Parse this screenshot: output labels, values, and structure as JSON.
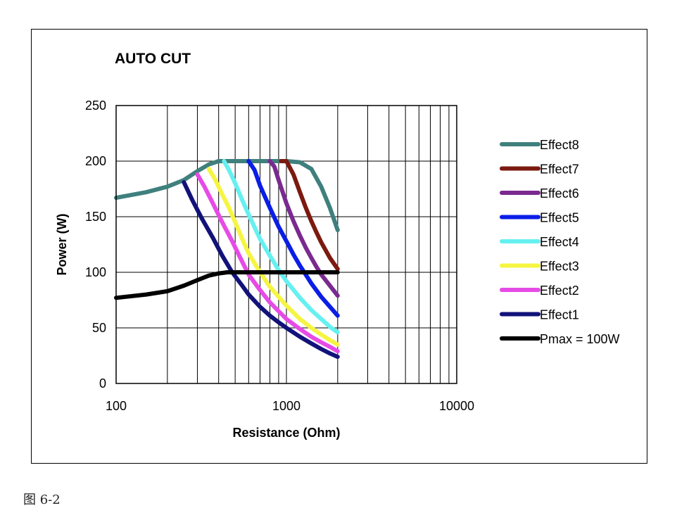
{
  "caption": "图 6-2",
  "chart_data": {
    "type": "line",
    "title": "AUTO CUT",
    "xlabel": "Resistance (Ohm)",
    "ylabel": "Power (W)",
    "xscale": "log",
    "xlim": [
      100,
      10000
    ],
    "ylim": [
      0,
      250
    ],
    "x_tick_labels": [
      "100",
      "1000",
      "10000"
    ],
    "y_tick_labels": [
      "0",
      "50",
      "100",
      "150",
      "200",
      "250"
    ],
    "grid": true,
    "legend_position": "right",
    "series": [
      {
        "name": "Effect8",
        "color": "#3f807d",
        "points": [
          [
            100,
            167
          ],
          [
            150,
            172
          ],
          [
            200,
            177
          ],
          [
            250,
            183
          ],
          [
            300,
            191
          ],
          [
            350,
            197
          ],
          [
            400,
            200
          ],
          [
            1000,
            200
          ],
          [
            1200,
            199
          ],
          [
            1400,
            193
          ],
          [
            1600,
            177
          ],
          [
            1800,
            158
          ],
          [
            2000,
            138
          ]
        ]
      },
      {
        "name": "Effect7",
        "color": "#7b1a0f",
        "points": [
          [
            930,
            200
          ],
          [
            1000,
            200
          ],
          [
            1100,
            188
          ],
          [
            1200,
            172
          ],
          [
            1300,
            158
          ],
          [
            1400,
            146
          ],
          [
            1500,
            136
          ],
          [
            1600,
            127
          ],
          [
            1800,
            113
          ],
          [
            2000,
            103
          ]
        ]
      },
      {
        "name": "Effect6",
        "color": "#7a2a8f",
        "points": [
          [
            800,
            200
          ],
          [
            850,
            195
          ],
          [
            900,
            183
          ],
          [
            1000,
            162
          ],
          [
            1100,
            146
          ],
          [
            1200,
            133
          ],
          [
            1300,
            122
          ],
          [
            1400,
            113
          ],
          [
            1500,
            105
          ],
          [
            1600,
            98
          ],
          [
            1800,
            88
          ],
          [
            2000,
            79
          ]
        ]
      },
      {
        "name": "Effect5",
        "color": "#0a1ee6",
        "points": [
          [
            600,
            200
          ],
          [
            650,
            192
          ],
          [
            700,
            178
          ],
          [
            800,
            158
          ],
          [
            900,
            141
          ],
          [
            1000,
            128
          ],
          [
            1100,
            116
          ],
          [
            1200,
            106
          ],
          [
            1400,
            90
          ],
          [
            1600,
            78
          ],
          [
            1800,
            69
          ],
          [
            2000,
            61
          ]
        ]
      },
      {
        "name": "Effect4",
        "color": "#66f0f0",
        "points": [
          [
            430,
            200
          ],
          [
            460,
            192
          ],
          [
            500,
            180
          ],
          [
            550,
            165
          ],
          [
            600,
            152
          ],
          [
            700,
            130
          ],
          [
            800,
            115
          ],
          [
            900,
            102
          ],
          [
            1000,
            92
          ],
          [
            1200,
            77
          ],
          [
            1400,
            66
          ],
          [
            1600,
            58
          ],
          [
            1800,
            51
          ],
          [
            2000,
            46
          ]
        ]
      },
      {
        "name": "Effect3",
        "color": "#f5f542",
        "points": [
          [
            350,
            193
          ],
          [
            380,
            184
          ],
          [
            420,
            170
          ],
          [
            460,
            158
          ],
          [
            500,
            145
          ],
          [
            550,
            130
          ],
          [
            600,
            117
          ],
          [
            700,
            100
          ],
          [
            800,
            87
          ],
          [
            900,
            78
          ],
          [
            1000,
            70
          ],
          [
            1200,
            58
          ],
          [
            1400,
            50
          ],
          [
            1600,
            44
          ],
          [
            1800,
            39
          ],
          [
            2000,
            35
          ]
        ]
      },
      {
        "name": "Effect2",
        "color": "#e64be6",
        "points": [
          [
            300,
            188
          ],
          [
            330,
            177
          ],
          [
            370,
            162
          ],
          [
            420,
            145
          ],
          [
            480,
            128
          ],
          [
            540,
            112
          ],
          [
            600,
            98
          ],
          [
            700,
            84
          ],
          [
            800,
            73
          ],
          [
            900,
            65
          ],
          [
            1000,
            58
          ],
          [
            1200,
            49
          ],
          [
            1400,
            42
          ],
          [
            1600,
            37
          ],
          [
            1800,
            33
          ],
          [
            2000,
            29
          ]
        ]
      },
      {
        "name": "Effect1",
        "color": "#12127a",
        "points": [
          [
            250,
            181
          ],
          [
            280,
            165
          ],
          [
            320,
            148
          ],
          [
            370,
            131
          ],
          [
            420,
            115
          ],
          [
            480,
            100
          ],
          [
            550,
            88
          ],
          [
            600,
            80
          ],
          [
            700,
            69
          ],
          [
            800,
            61
          ],
          [
            900,
            55
          ],
          [
            1000,
            50
          ],
          [
            1200,
            42
          ],
          [
            1400,
            36
          ],
          [
            1600,
            31
          ],
          [
            1800,
            27
          ],
          [
            2000,
            24
          ]
        ]
      },
      {
        "name": "Pmax = 100W",
        "color": "#000000",
        "points": [
          [
            100,
            77
          ],
          [
            150,
            80
          ],
          [
            200,
            83
          ],
          [
            250,
            88
          ],
          [
            300,
            93
          ],
          [
            350,
            97
          ],
          [
            400,
            99
          ],
          [
            450,
            100
          ],
          [
            500,
            100
          ],
          [
            2000,
            100
          ]
        ]
      }
    ]
  }
}
